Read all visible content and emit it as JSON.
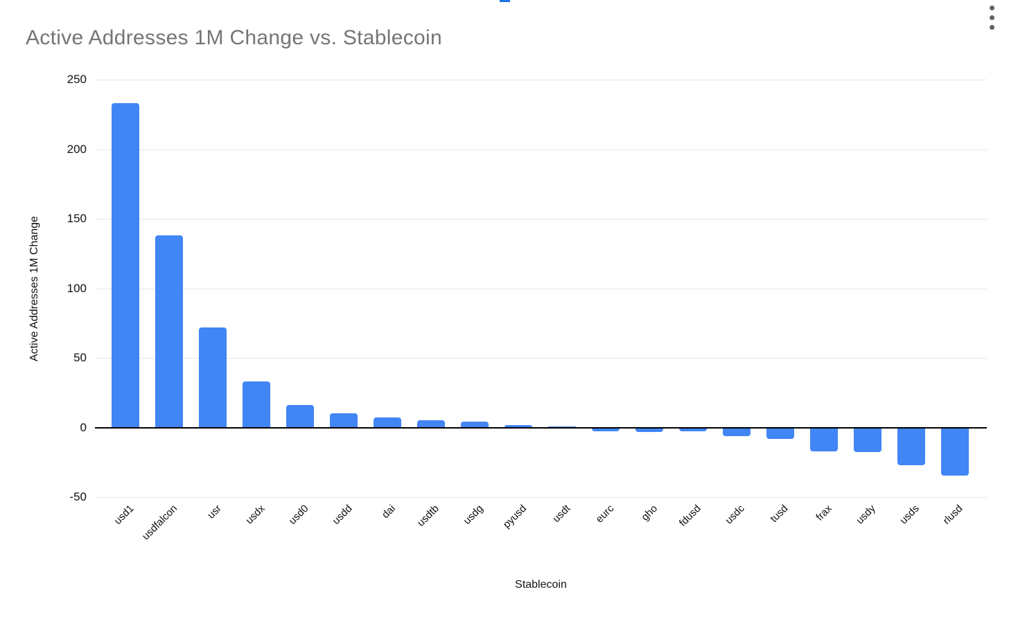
{
  "window": {
    "menu_icon": "kebab-menu",
    "selection_handle_color": "#1a73e8"
  },
  "chart_data": {
    "type": "bar",
    "title": "Active Addresses 1M Change vs. Stablecoin",
    "xlabel": "Stablecoin",
    "ylabel": "Active Addresses 1M Change",
    "categories": [
      "usd1",
      "usdfalcon",
      "usr",
      "usdx",
      "usd0",
      "usdd",
      "dai",
      "usdtb",
      "usdg",
      "pyusd",
      "usdt",
      "eurc",
      "gho",
      "fdusd",
      "usdc",
      "tusd",
      "frax",
      "usdy",
      "usds",
      "rlusd"
    ],
    "values": [
      233,
      138,
      72,
      33,
      16,
      10,
      7,
      5,
      4,
      1.5,
      0.5,
      -2.5,
      -3,
      -2.5,
      -6,
      -8,
      -17,
      -17.5,
      -27,
      -34.5
    ],
    "ylim": [
      -50,
      250
    ],
    "yticks": [
      250,
      200,
      150,
      100,
      50,
      0,
      -50
    ],
    "grid": true,
    "legend": "none",
    "bar_color": "#4285F4",
    "grid_color": "#e6e6e6",
    "zero_axis_color": "#000000",
    "title_color": "#757575"
  }
}
